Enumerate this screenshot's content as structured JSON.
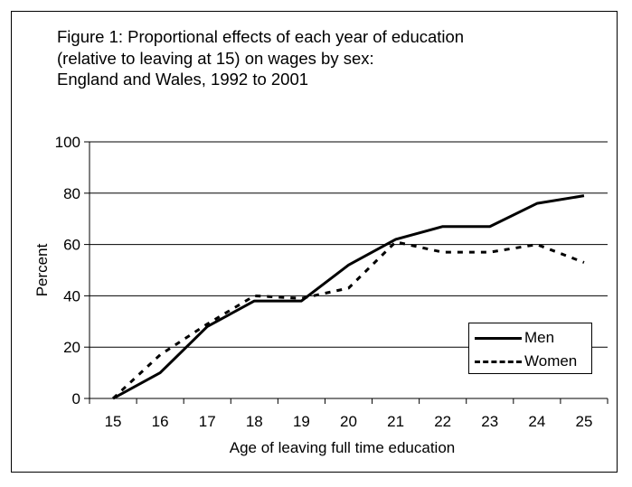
{
  "title_lines": [
    "Figure 1: Proportional effects of each year of education",
    "(relative to leaving at 15) on wages by sex:",
    "England and Wales, 1992 to 2001"
  ],
  "chart_data": {
    "type": "line",
    "title": "Figure 1: Proportional effects of each year of education (relative to leaving at 15) on wages by sex: England and Wales, 1992 to 2001",
    "xlabel": "Age of leaving full time education",
    "ylabel": "Percent",
    "x": [
      15,
      16,
      17,
      18,
      19,
      20,
      21,
      22,
      23,
      24,
      25
    ],
    "ylim": [
      0,
      100
    ],
    "yticks": [
      0,
      20,
      40,
      60,
      80,
      100
    ],
    "grid": "horizontal",
    "legend_position": "bottom-right",
    "series": [
      {
        "name": "Men",
        "style": "solid",
        "color": "#000000",
        "values": [
          0,
          10,
          28,
          38,
          38,
          52,
          62,
          67,
          67,
          76,
          79
        ]
      },
      {
        "name": "Women",
        "style": "dashed",
        "color": "#000000",
        "values": [
          0,
          17,
          29,
          40,
          39,
          43,
          61,
          57,
          57,
          60,
          53
        ]
      }
    ]
  }
}
